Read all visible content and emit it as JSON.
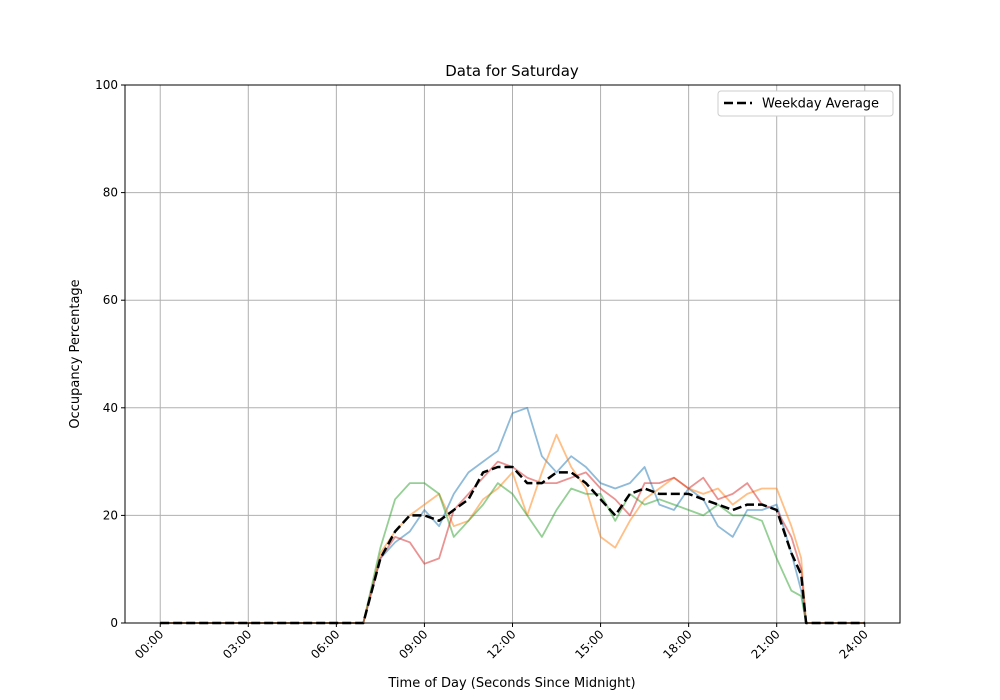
{
  "chart_data": {
    "type": "line",
    "title": "Data for Saturday",
    "xlabel": "Time of Day (Seconds Since Midnight)",
    "ylabel": "Occupancy Percentage",
    "ylim": [
      0,
      100
    ],
    "xlim": [
      "-01:12",
      "25:12"
    ],
    "grid": true,
    "legend_placement": "top-right",
    "xticks": [
      "00:00",
      "03:00",
      "06:00",
      "09:00",
      "12:00",
      "15:00",
      "18:00",
      "21:00",
      "24:00"
    ],
    "yticks": [
      "0",
      "20",
      "40",
      "60",
      "80",
      "100"
    ],
    "x": [
      "00:00",
      "06:30",
      "06:55",
      "07:30",
      "08:00",
      "08:30",
      "09:00",
      "09:30",
      "10:00",
      "10:30",
      "11:00",
      "11:30",
      "12:00",
      "12:30",
      "13:00",
      "13:30",
      "14:00",
      "14:30",
      "15:00",
      "15:30",
      "16:00",
      "16:30",
      "17:00",
      "17:30",
      "18:00",
      "18:30",
      "19:00",
      "19:30",
      "20:00",
      "20:30",
      "21:00",
      "21:30",
      "21:50",
      "22:00",
      "24:00"
    ],
    "series": [
      {
        "color": "#1f77b4",
        "alpha": 0.5,
        "dashed": false,
        "values": [
          0,
          0,
          0,
          12,
          15,
          17,
          21,
          18,
          24,
          28,
          30,
          32,
          39,
          40,
          31,
          28,
          31,
          29,
          26,
          25,
          26,
          29,
          22,
          21,
          25,
          23,
          18,
          16,
          21,
          21,
          22,
          13,
          6,
          0,
          0
        ]
      },
      {
        "color": "#ff7f0e",
        "alpha": 0.5,
        "dashed": false,
        "values": [
          0,
          0,
          0,
          13,
          17,
          20,
          22,
          24,
          18,
          19,
          23,
          25,
          28,
          20,
          28,
          35,
          29,
          25,
          16,
          14,
          19,
          23,
          25,
          27,
          25,
          24,
          25,
          22,
          24,
          25,
          25,
          18,
          12,
          0,
          0
        ]
      },
      {
        "color": "#2ca02c",
        "alpha": 0.5,
        "dashed": false,
        "values": [
          0,
          0,
          0,
          14,
          23,
          26,
          26,
          24,
          16,
          19,
          22,
          26,
          24,
          20,
          16,
          21,
          25,
          24,
          24,
          19,
          24,
          22,
          23,
          22,
          21,
          20,
          22,
          20,
          20,
          19,
          12,
          6,
          5,
          0,
          0
        ]
      },
      {
        "color": "#d62728",
        "alpha": 0.5,
        "dashed": false,
        "values": [
          0,
          0,
          0,
          12,
          16,
          15,
          11,
          12,
          21,
          24,
          27,
          30,
          29,
          27,
          26,
          26,
          27,
          28,
          25,
          23,
          20,
          26,
          26,
          27,
          25,
          27,
          23,
          24,
          26,
          22,
          21,
          16,
          10,
          0,
          0
        ]
      },
      {
        "name": "Weekday Average",
        "color": "#000000",
        "alpha": 1,
        "dashed": true,
        "values": [
          0,
          0,
          0,
          12,
          17,
          20,
          20,
          19,
          21,
          23,
          28,
          29,
          29,
          26,
          26,
          28,
          28,
          26,
          23,
          20,
          24,
          25,
          24,
          24,
          24,
          23,
          22,
          21,
          22,
          22,
          21,
          13,
          9,
          0,
          0
        ]
      }
    ]
  }
}
